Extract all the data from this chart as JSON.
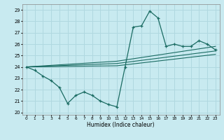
{
  "title": "",
  "xlabel": "Humidex (Indice chaleur)",
  "xlim": [
    -0.5,
    23.5
  ],
  "ylim": [
    19.8,
    29.5
  ],
  "yticks": [
    20,
    21,
    22,
    23,
    24,
    25,
    26,
    27,
    28,
    29
  ],
  "xticks": [
    0,
    1,
    2,
    3,
    4,
    5,
    6,
    7,
    8,
    9,
    10,
    11,
    12,
    13,
    14,
    15,
    16,
    17,
    18,
    19,
    20,
    21,
    22,
    23
  ],
  "bg_color": "#c8eaf0",
  "line_color": "#1a6b62",
  "grid_color": "#b0d8e0",
  "curve_x": [
    0,
    1,
    2,
    3,
    4,
    5,
    6,
    7,
    8,
    9,
    10,
    11,
    12,
    13,
    14,
    15,
    16,
    17,
    18,
    19,
    20,
    21,
    22,
    23
  ],
  "curve_y": [
    24.0,
    23.7,
    23.2,
    22.8,
    22.2,
    20.8,
    21.5,
    21.8,
    21.5,
    21.0,
    20.7,
    20.5,
    24.0,
    27.5,
    27.6,
    28.9,
    28.3,
    25.8,
    26.0,
    25.8,
    25.8,
    26.3,
    26.0,
    25.5
  ],
  "line1_x": [
    0,
    11,
    23
  ],
  "line1_y": [
    24.0,
    24.5,
    25.8
  ],
  "line2_x": [
    0,
    11,
    23
  ],
  "line2_y": [
    24.0,
    24.3,
    25.4
  ],
  "line3_x": [
    0,
    11,
    23
  ],
  "line3_y": [
    24.0,
    24.1,
    25.1
  ]
}
